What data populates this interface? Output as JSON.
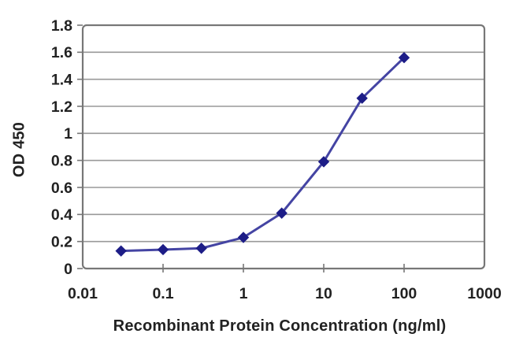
{
  "chart_data": {
    "type": "line",
    "title": "",
    "xlabel": "Recombinant Protein Concentration (ng/ml)",
    "ylabel": "OD 450",
    "x_scale": "log",
    "xlim": [
      0.01,
      1000
    ],
    "ylim": [
      0,
      1.8
    ],
    "x": [
      0.03,
      0.1,
      0.3,
      1,
      3,
      10,
      30,
      100
    ],
    "series": [
      {
        "name": "OD 450",
        "values": [
          0.13,
          0.14,
          0.15,
          0.23,
          0.41,
          0.79,
          1.26,
          1.56
        ]
      }
    ],
    "x_ticks": [
      0.01,
      0.1,
      1,
      10,
      100,
      1000
    ],
    "x_tick_labels": [
      "0.01",
      "0.1",
      "1",
      "10",
      "100",
      "1000"
    ],
    "y_ticks": [
      0,
      0.2,
      0.4,
      0.6,
      0.8,
      1,
      1.2,
      1.4,
      1.6,
      1.8
    ],
    "y_tick_labels": [
      "0",
      "0.2",
      "0.4",
      "0.6",
      "0.8",
      "1",
      "1.2",
      "1.4",
      "1.6",
      "1.8"
    ],
    "grid": "horizontal",
    "legend": "none",
    "marker": "diamond",
    "colors": {
      "line": "#4444a3",
      "marker": "#1d1d87",
      "grid": "#999999",
      "border": "#777777",
      "text": "#222222",
      "background": "#ffffff"
    }
  }
}
